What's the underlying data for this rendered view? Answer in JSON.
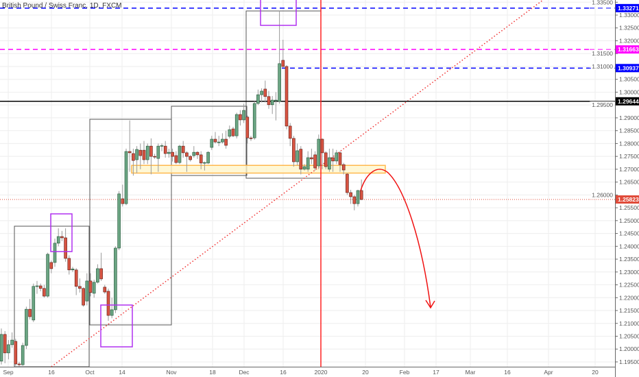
{
  "header": {
    "title": "British Pound / Swiss Franc, 1D, FXCM"
  },
  "chart_data": {
    "type": "candlestick",
    "title": "British Pound / Swiss Franc, 1D, FXCM",
    "symbol": "GBPCHF",
    "interval": "1D",
    "ylim": [
      1.195,
      1.335
    ],
    "grid": true,
    "colors": {
      "up": "#6ba583",
      "down": "#d75442",
      "up_border": "#225437",
      "down_border": "#5b1a13"
    },
    "y_ticks": [
      "1.33500",
      "1.33000",
      "1.32500",
      "1.32000",
      "1.31500",
      "1.31000",
      "1.30500",
      "1.30000",
      "1.29500",
      "1.29000",
      "1.28500",
      "1.28000",
      "1.27500",
      "1.27000",
      "1.26500",
      "1.26000",
      "1.25500",
      "1.25000",
      "1.24500",
      "1.24000",
      "1.23500",
      "1.23000",
      "1.22500",
      "1.22000",
      "1.21500",
      "1.21000",
      "1.20500",
      "1.20000",
      "1.19500"
    ],
    "x_ticks": [
      "Sep",
      "16",
      "Oct",
      "14",
      "Nov",
      "18",
      "Dec",
      "16",
      "2020",
      "20",
      "Feb",
      "17",
      "Mar",
      "16",
      "Apr",
      "20"
    ],
    "candles_ohlc": [
      [
        1.1953,
        1.208,
        1.194,
        1.2057
      ],
      [
        1.2057,
        1.207,
        1.1945,
        1.1985
      ],
      [
        1.1985,
        1.2035,
        1.196,
        1.2017
      ],
      [
        1.2017,
        1.2065,
        1.2005,
        1.2035
      ],
      [
        1.203,
        1.204,
        1.1935,
        1.1942
      ],
      [
        1.1942,
        1.195,
        1.1932,
        1.1939
      ],
      [
        1.1939,
        1.2025,
        1.1935,
        1.2014
      ],
      [
        1.2014,
        1.2165,
        1.2,
        1.2155
      ],
      [
        1.2155,
        1.2195,
        1.2115,
        1.2126
      ],
      [
        1.2113,
        1.2255,
        1.2105,
        1.2244
      ],
      [
        1.2244,
        1.2265,
        1.2215,
        1.2246
      ],
      [
        1.2246,
        1.2255,
        1.2225,
        1.2236
      ],
      [
        1.2236,
        1.225,
        1.22,
        1.2206
      ],
      [
        1.2206,
        1.2375,
        1.22,
        1.2369
      ],
      [
        1.2337,
        1.2345,
        1.2295,
        1.2313
      ],
      [
        1.2337,
        1.243,
        1.232,
        1.2412
      ],
      [
        1.2412,
        1.247,
        1.24,
        1.2438
      ],
      [
        1.2438,
        1.246,
        1.242,
        1.2433
      ],
      [
        1.2433,
        1.247,
        1.234,
        1.2353
      ],
      [
        1.2353,
        1.2365,
        1.229,
        1.2308
      ],
      [
        1.2308,
        1.232,
        1.23,
        1.2312
      ],
      [
        1.2308,
        1.2315,
        1.221,
        1.2244
      ],
      [
        1.2244,
        1.2275,
        1.222,
        1.2236
      ],
      [
        1.2236,
        1.224,
        1.2165,
        1.2171
      ],
      [
        1.2187,
        1.2295,
        1.217,
        1.2265
      ],
      [
        1.2265,
        1.2295,
        1.2205,
        1.222
      ],
      [
        1.2217,
        1.227,
        1.22,
        1.226
      ],
      [
        1.226,
        1.233,
        1.2255,
        1.2313
      ],
      [
        1.2313,
        1.2375,
        1.2265,
        1.2273
      ],
      [
        1.2241,
        1.225,
        1.2215,
        1.2222
      ],
      [
        1.2225,
        1.2235,
        1.211,
        1.2131
      ],
      [
        1.2131,
        1.22,
        1.212,
        1.2153
      ],
      [
        1.2153,
        1.24,
        1.214,
        1.2393
      ],
      [
        1.2393,
        1.2615,
        1.2385,
        1.2604
      ],
      [
        1.2585,
        1.264,
        1.2555,
        1.2566
      ],
      [
        1.2566,
        1.278,
        1.256,
        1.2769
      ],
      [
        1.2769,
        1.289,
        1.269,
        1.2764
      ],
      [
        1.2761,
        1.278,
        1.2675,
        1.2734
      ],
      [
        1.2737,
        1.279,
        1.2685,
        1.2777
      ],
      [
        1.2774,
        1.28,
        1.27,
        1.2753
      ],
      [
        1.2774,
        1.281,
        1.272,
        1.2737
      ],
      [
        1.2737,
        1.28,
        1.272,
        1.279
      ],
      [
        1.279,
        1.282,
        1.268,
        1.275
      ],
      [
        1.275,
        1.276,
        1.274,
        1.2748
      ],
      [
        1.2742,
        1.28,
        1.269,
        1.279
      ],
      [
        1.279,
        1.28,
        1.277,
        1.2792
      ],
      [
        1.279,
        1.281,
        1.2745,
        1.2761
      ],
      [
        1.2761,
        1.278,
        1.2745,
        1.2766
      ],
      [
        1.2766,
        1.278,
        1.273,
        1.275
      ],
      [
        1.2753,
        1.277,
        1.272,
        1.2726
      ],
      [
        1.2726,
        1.2795,
        1.272,
        1.279
      ],
      [
        1.279,
        1.281,
        1.2745,
        1.2764
      ],
      [
        1.2764,
        1.277,
        1.269,
        1.275
      ],
      [
        1.275,
        1.2755,
        1.273,
        1.2737
      ],
      [
        1.2753,
        1.279,
        1.2745,
        1.2766
      ],
      [
        1.2766,
        1.277,
        1.274,
        1.2756
      ],
      [
        1.2756,
        1.277,
        1.27,
        1.2724
      ],
      [
        1.2724,
        1.273,
        1.2695,
        1.2726
      ],
      [
        1.2724,
        1.277,
        1.272,
        1.2766
      ],
      [
        1.2785,
        1.283,
        1.2775,
        1.2817
      ],
      [
        1.2817,
        1.2845,
        1.28,
        1.2806
      ],
      [
        1.2806,
        1.283,
        1.279,
        1.2806
      ],
      [
        1.2806,
        1.284,
        1.28,
        1.2817
      ],
      [
        1.2817,
        1.285,
        1.278,
        1.2793
      ],
      [
        1.2828,
        1.287,
        1.282,
        1.2854
      ],
      [
        1.2857,
        1.2865,
        1.2825,
        1.283
      ],
      [
        1.283,
        1.292,
        1.282,
        1.2913
      ],
      [
        1.2913,
        1.293,
        1.287,
        1.2892
      ],
      [
        1.2892,
        1.2955,
        1.288,
        1.2929
      ],
      [
        1.2903,
        1.291,
        1.28,
        1.2822
      ],
      [
        1.2822,
        1.283,
        1.281,
        1.2819
      ],
      [
        1.2822,
        1.2965,
        1.2815,
        1.2956
      ],
      [
        1.2956,
        1.301,
        1.295,
        1.299
      ],
      [
        1.299,
        1.3015,
        1.296,
        1.3004
      ],
      [
        1.3012,
        1.3045,
        1.296,
        1.2983
      ],
      [
        1.2983,
        1.3005,
        1.2935,
        1.2951
      ],
      [
        1.2951,
        1.2985,
        1.2915,
        1.2969
      ],
      [
        1.2969,
        1.3,
        1.289,
        1.2969
      ],
      [
        1.2964,
        1.3318,
        1.2955,
        1.3111
      ],
      [
        1.3124,
        1.3204,
        1.3095,
        1.31
      ],
      [
        1.31,
        1.3105,
        1.2855,
        1.2868
      ],
      [
        1.2868,
        1.288,
        1.279,
        1.282
      ],
      [
        1.282,
        1.283,
        1.271,
        1.2729
      ],
      [
        1.2729,
        1.28,
        1.2715,
        1.2772
      ],
      [
        1.2778,
        1.279,
        1.268,
        1.27
      ],
      [
        1.27,
        1.272,
        1.2695,
        1.271
      ],
      [
        1.27,
        1.277,
        1.269,
        1.2745
      ],
      [
        1.2745,
        1.278,
        1.272,
        1.274
      ],
      [
        1.2756,
        1.277,
        1.2695,
        1.2705
      ],
      [
        1.2713,
        1.2835,
        1.27,
        1.2817
      ],
      [
        1.2817,
        1.282,
        1.27,
        1.2764
      ],
      [
        1.2764,
        1.277,
        1.27,
        1.271
      ],
      [
        1.27,
        1.278,
        1.269,
        1.2745
      ],
      [
        1.2745,
        1.278,
        1.269,
        1.2732
      ],
      [
        1.2732,
        1.2775,
        1.272,
        1.2764
      ],
      [
        1.2764,
        1.277,
        1.269,
        1.2718
      ],
      [
        1.2718,
        1.2725,
        1.268,
        1.2697
      ],
      [
        1.2681,
        1.2685,
        1.26,
        1.2609
      ],
      [
        1.2609,
        1.262,
        1.2565,
        1.2593
      ],
      [
        1.2593,
        1.26,
        1.254,
        1.2566
      ],
      [
        1.2566,
        1.262,
        1.2555,
        1.2617
      ],
      [
        1.2617,
        1.266,
        1.258,
        1.2582
      ]
    ],
    "price_levels": [
      {
        "label": "1.33271",
        "value": 1.33271,
        "color": "#0000ff",
        "style": "dashed"
      },
      {
        "label": "1.31663",
        "value": 1.31663,
        "color": "#ff00ff",
        "style": "dashed"
      },
      {
        "label": "1.30937",
        "value": 1.30937,
        "color": "#0000ff",
        "style": "dashed"
      },
      {
        "label": "1.29644",
        "value": 1.29644,
        "color": "#000000",
        "style": "solid"
      },
      {
        "label": "1.25823",
        "value": 1.25823,
        "color": "#e04b3a",
        "style": "dotted"
      }
    ],
    "support_zone": {
      "from": 1.2685,
      "to": 1.2715,
      "color": "#ffb84d"
    }
  }
}
